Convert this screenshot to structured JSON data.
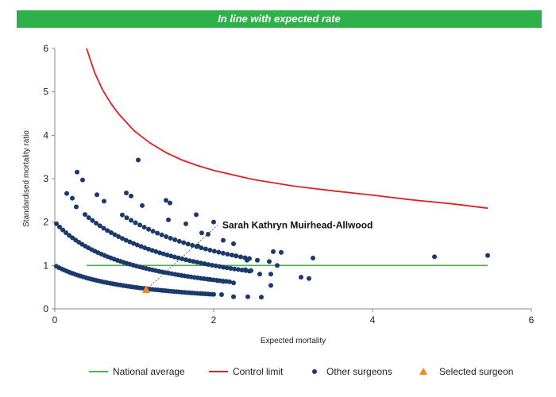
{
  "banner": {
    "title": "In line with expected rate"
  },
  "chart_data": {
    "type": "scatter",
    "xlabel": "Expected mortality",
    "ylabel": "Standardised mortality ratio",
    "xlim": [
      0,
      6
    ],
    "ylim": [
      0,
      6
    ],
    "x_ticks": [
      0,
      2,
      4,
      6
    ],
    "y_ticks": [
      0,
      1,
      2,
      3,
      4,
      5,
      6
    ],
    "colors": {
      "national_average": "#4caf50",
      "control_limit": "#e02020",
      "other_surgeons": "#1b3a6b",
      "selected_surgeon": "#f08a1c",
      "banner": "#2fb14a"
    },
    "national_average": {
      "name": "National average",
      "y": 1,
      "x_range": [
        0.4,
        5.45
      ]
    },
    "control_limit": {
      "name": "Control limit",
      "points": [
        [
          0.4,
          6.0
        ],
        [
          0.5,
          5.45
        ],
        [
          0.6,
          5.05
        ],
        [
          0.7,
          4.75
        ],
        [
          0.8,
          4.5
        ],
        [
          1.0,
          4.1
        ],
        [
          1.2,
          3.82
        ],
        [
          1.4,
          3.6
        ],
        [
          1.6,
          3.43
        ],
        [
          1.8,
          3.3
        ],
        [
          2.0,
          3.19
        ],
        [
          2.5,
          2.98
        ],
        [
          3.0,
          2.83
        ],
        [
          3.5,
          2.72
        ],
        [
          4.0,
          2.62
        ],
        [
          4.5,
          2.51
        ],
        [
          5.0,
          2.42
        ],
        [
          5.45,
          2.32
        ]
      ]
    },
    "other_surgeons": {
      "name": "Other surgeons",
      "curves": [
        {
          "k": 1,
          "x_from": 0.02,
          "x_to": 2.0,
          "count": 60
        },
        {
          "k": 2,
          "x_from": 0.02,
          "x_to": 2.2,
          "count": 55
        },
        {
          "k": 3,
          "x_from": 0.38,
          "x_to": 2.45,
          "count": 45
        },
        {
          "k": 4,
          "x_from": 0.85,
          "x_to": 2.45,
          "count": 30
        }
      ],
      "points": [
        [
          0.28,
          3.15
        ],
        [
          0.35,
          2.97
        ],
        [
          0.15,
          2.66
        ],
        [
          0.22,
          2.55
        ],
        [
          0.27,
          2.35
        ],
        [
          0.53,
          2.63
        ],
        [
          0.62,
          2.48
        ],
        [
          0.9,
          2.67
        ],
        [
          0.96,
          2.6
        ],
        [
          1.1,
          2.38
        ],
        [
          1.05,
          3.43
        ],
        [
          1.4,
          2.5
        ],
        [
          1.45,
          2.44
        ],
        [
          1.43,
          2.05
        ],
        [
          1.65,
          1.96
        ],
        [
          1.78,
          2.17
        ],
        [
          1.85,
          1.75
        ],
        [
          1.93,
          1.72
        ],
        [
          2.0,
          2.0
        ],
        [
          1.8,
          1.45
        ],
        [
          2.12,
          1.58
        ],
        [
          2.25,
          1.5
        ],
        [
          2.28,
          1.22
        ],
        [
          2.42,
          1.12
        ],
        [
          2.55,
          1.12
        ],
        [
          2.7,
          1.09
        ],
        [
          2.75,
          1.32
        ],
        [
          2.85,
          1.3
        ],
        [
          2.8,
          1.0
        ],
        [
          2.72,
          0.8
        ],
        [
          2.4,
          0.9
        ],
        [
          2.47,
          0.88
        ],
        [
          2.58,
          0.8
        ],
        [
          2.72,
          0.54
        ],
        [
          3.1,
          0.73
        ],
        [
          3.2,
          0.7
        ],
        [
          3.25,
          1.17
        ],
        [
          4.78,
          1.2
        ],
        [
          5.45,
          1.23
        ],
        [
          2.25,
          0.28
        ],
        [
          2.6,
          0.27
        ],
        [
          2.43,
          0.28
        ],
        [
          2.1,
          0.33
        ],
        [
          2.25,
          0.6
        ],
        [
          1.95,
          0.68
        ],
        [
          2.05,
          0.65
        ],
        [
          2.12,
          0.63
        ]
      ]
    },
    "selected_surgeon": {
      "name": "Selected surgeon",
      "label": "Sarah Kathryn Muirhead-Allwood",
      "x": 1.15,
      "y": 0.44
    },
    "legend": {
      "placement": "bottom",
      "items": [
        "National average",
        "Control limit",
        "Other surgeons",
        "Selected surgeon"
      ]
    }
  }
}
